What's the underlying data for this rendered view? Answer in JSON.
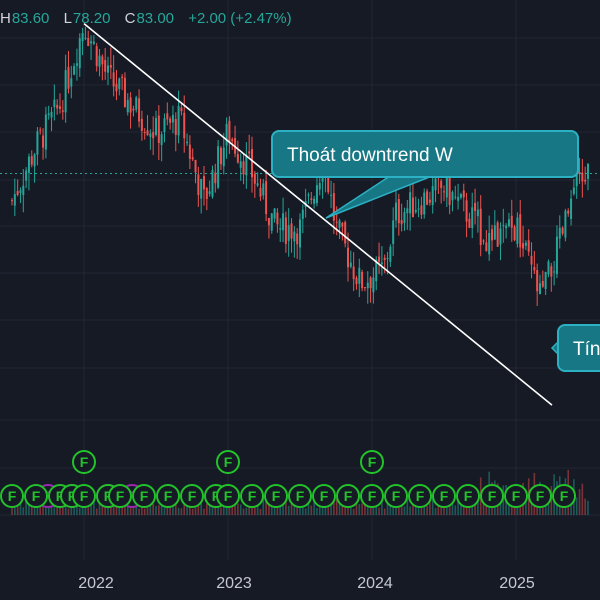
{
  "header": {
    "h_label": "H",
    "h_value": "83.60",
    "l_label": "L",
    "l_value": "78.20",
    "c_label": "C",
    "c_value": "83.00",
    "change": "+2.00 (+2.47%)"
  },
  "annotations": {
    "callout_1": "Thoát downtrend W",
    "callout_2": "Tín"
  },
  "colors": {
    "background": "#161a25",
    "up": "#26a69a",
    "down": "#ef5350",
    "grid": "#232734",
    "trendline": "#ffffff",
    "callout_fill": "#177784",
    "callout_border": "#2bb1c3",
    "event_marker": "#22c32a",
    "dividend_marker": "#9c27b0",
    "axis_text": "#8b8f9a"
  },
  "chart_data": {
    "type": "candlestick",
    "x_axis_labels": [
      "2022",
      "2023",
      "2024",
      "2025"
    ],
    "last_price_line": 83.0,
    "y_range_estimated": [
      55,
      95
    ],
    "close_path_estimated": [
      {
        "date": "2021-07",
        "close": 81
      },
      {
        "date": "2021-09",
        "close": 85
      },
      {
        "date": "2021-11",
        "close": 88
      },
      {
        "date": "2022-01",
        "close": 94
      },
      {
        "date": "2022-03",
        "close": 90
      },
      {
        "date": "2022-05",
        "close": 88
      },
      {
        "date": "2022-07",
        "close": 86
      },
      {
        "date": "2022-09",
        "close": 87
      },
      {
        "date": "2022-11",
        "close": 81
      },
      {
        "date": "2023-01",
        "close": 86
      },
      {
        "date": "2023-03",
        "close": 83
      },
      {
        "date": "2023-05",
        "close": 79
      },
      {
        "date": "2023-07",
        "close": 79
      },
      {
        "date": "2023-09",
        "close": 84
      },
      {
        "date": "2023-10",
        "close": 79
      },
      {
        "date": "2023-12",
        "close": 75
      },
      {
        "date": "2024-02",
        "close": 76
      },
      {
        "date": "2024-03",
        "close": 80
      },
      {
        "date": "2024-05",
        "close": 81
      },
      {
        "date": "2024-07",
        "close": 82
      },
      {
        "date": "2024-09",
        "close": 80
      },
      {
        "date": "2024-11",
        "close": 78
      },
      {
        "date": "2025-01",
        "close": 79
      },
      {
        "date": "2025-03",
        "close": 74
      },
      {
        "date": "2025-04",
        "close": 76
      },
      {
        "date": "2025-06",
        "close": 82
      },
      {
        "date": "2025-07",
        "close": 83
      }
    ],
    "trendline": {
      "label": "downtrend W",
      "from": {
        "date": "2022-01",
        "value": 94
      },
      "to": {
        "date": "2025-04",
        "value": 66
      }
    },
    "event_markers": {
      "symbol": "F",
      "row1_dates": [
        "2022-01",
        "2023-01",
        "2024-01"
      ],
      "row2_dates": [
        "2021-07",
        "2021-09",
        "2021-11",
        "2021-12",
        "2022-01",
        "2022-03",
        "2022-04",
        "2022-06",
        "2022-08",
        "2022-10",
        "2022-12",
        "2023-01",
        "2023-03",
        "2023-05",
        "2023-07",
        "2023-09",
        "2023-11",
        "2024-01",
        "2024-03",
        "2024-05",
        "2024-07",
        "2024-09",
        "2024-11",
        "2025-01",
        "2025-03",
        "2025-05"
      ],
      "dividend_dates": [
        "2021-10",
        "2021-12",
        "2022-03",
        "2022-05"
      ]
    }
  }
}
